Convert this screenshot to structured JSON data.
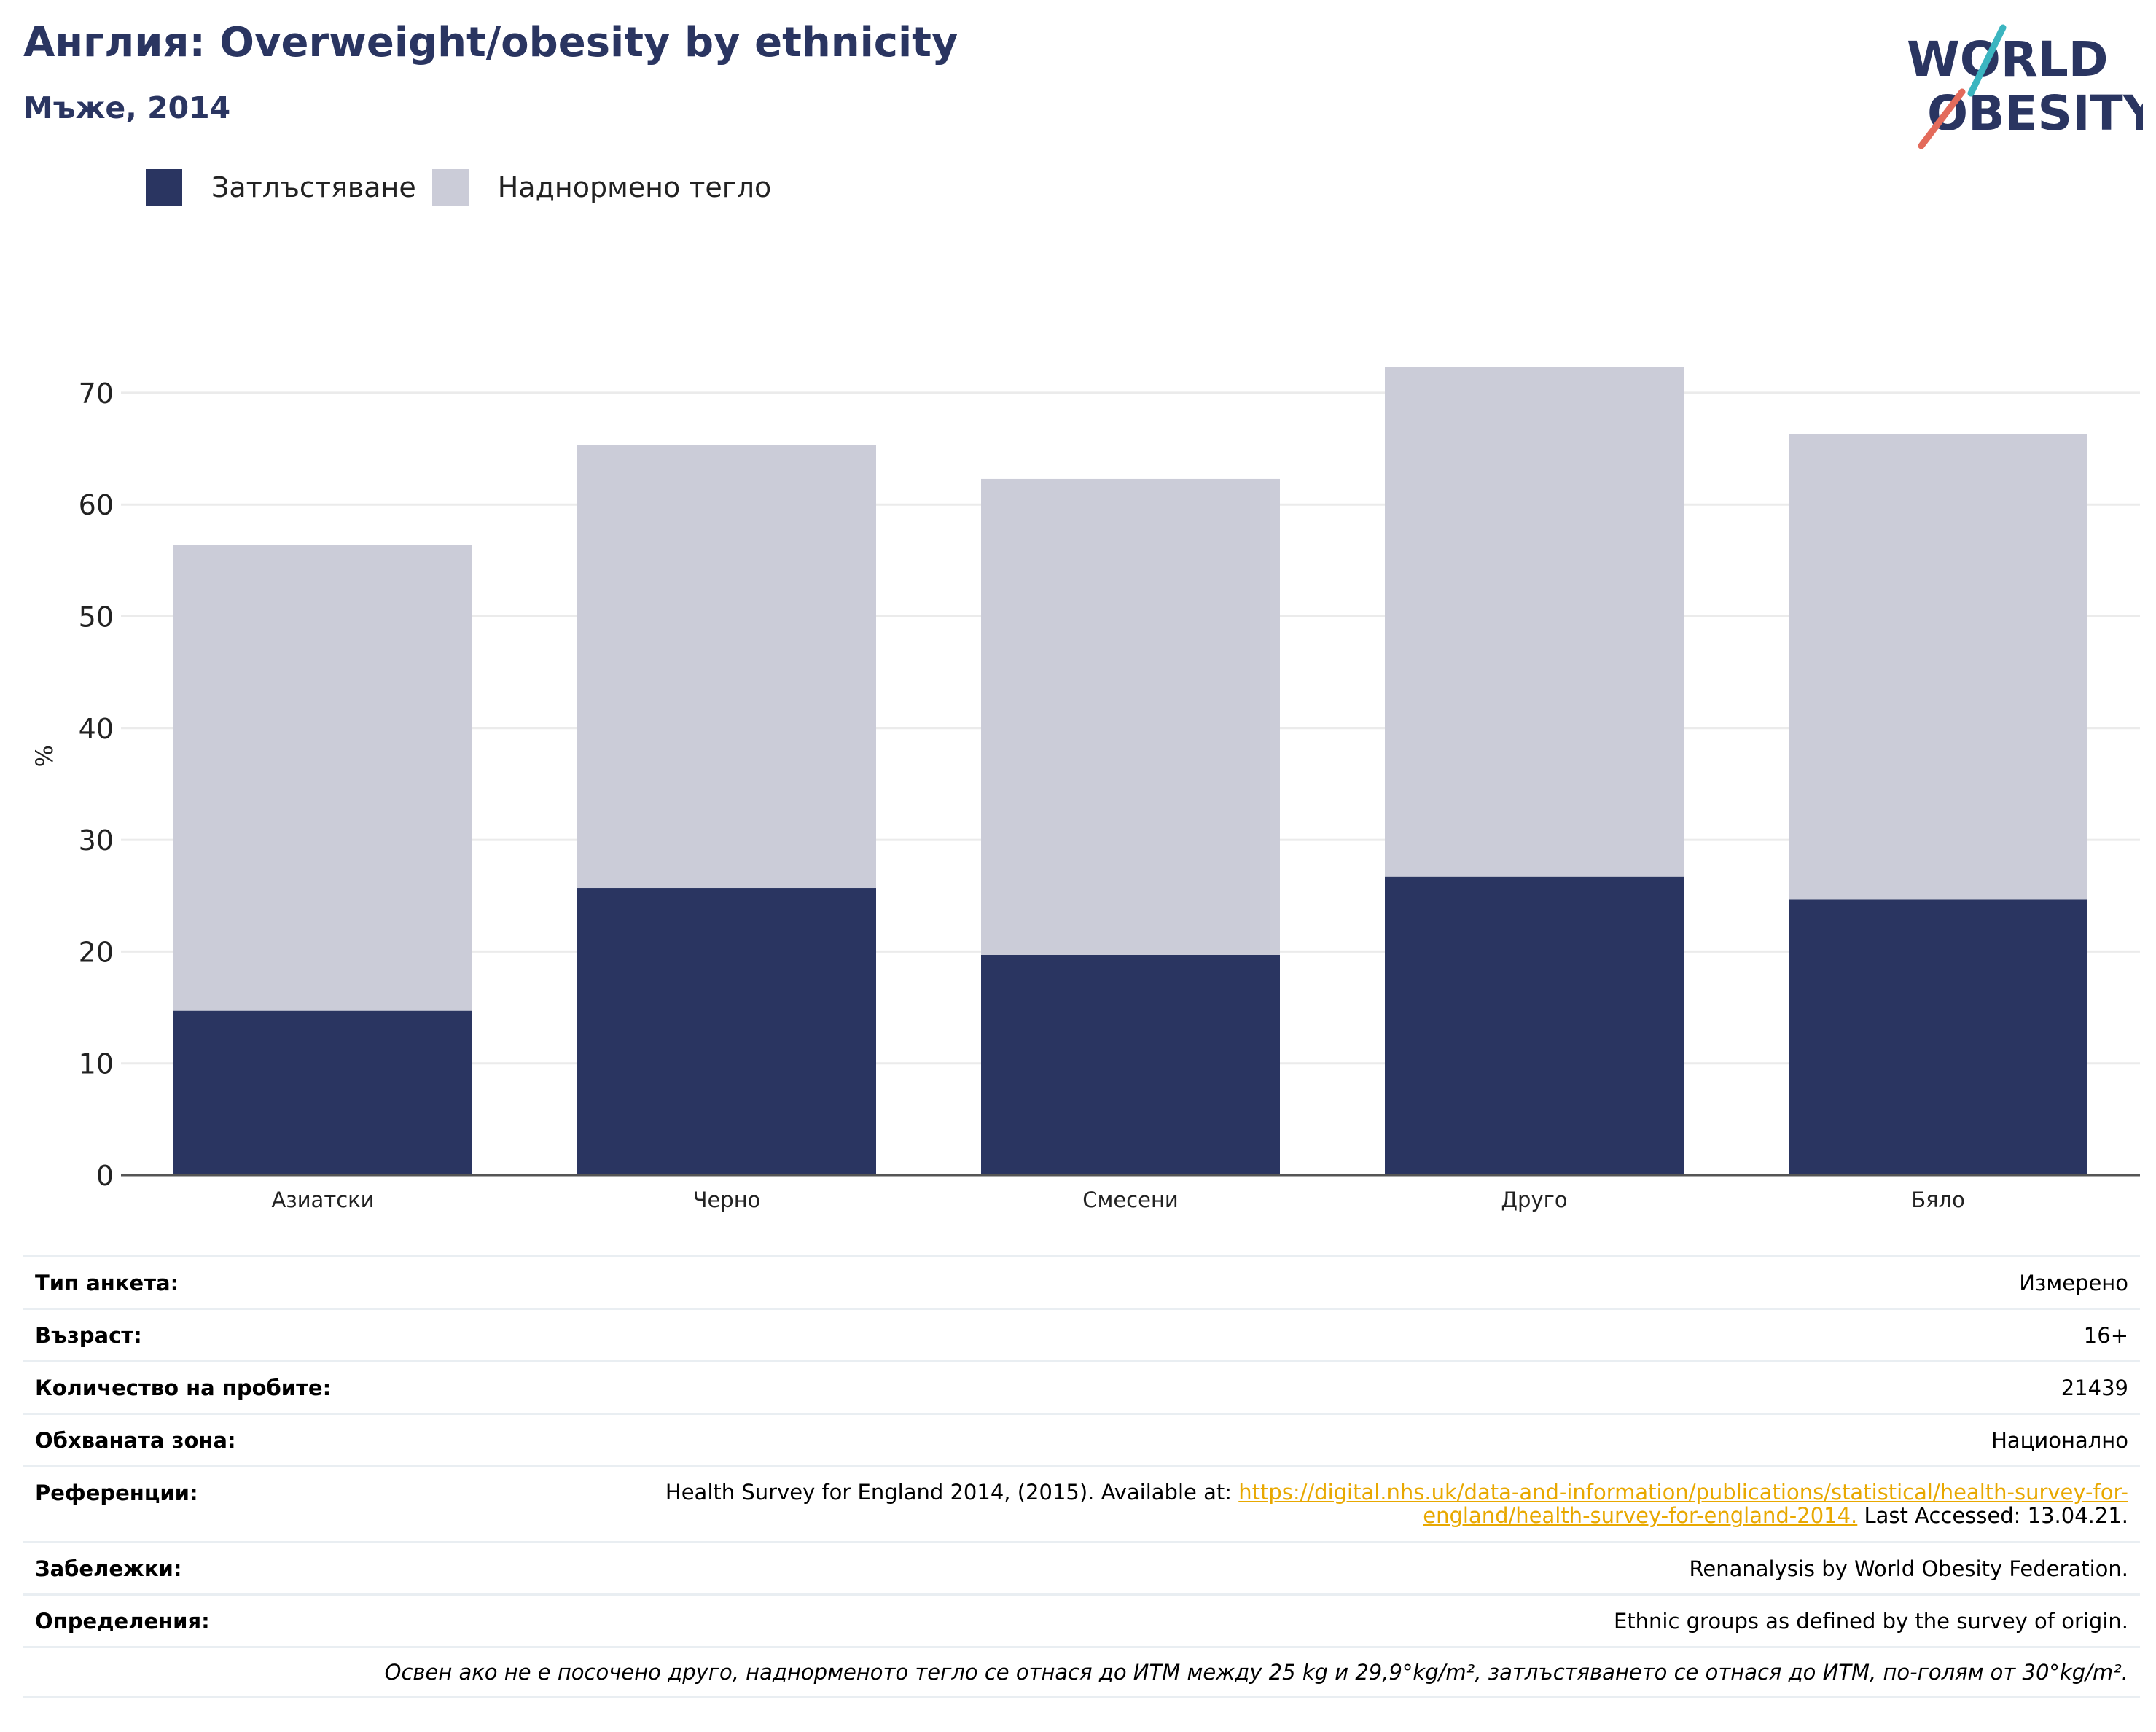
{
  "header": {
    "title": "Англия: Overweight/obesity by ethnicity",
    "subtitle": "Мъже, 2014"
  },
  "logo": {
    "line1": "WORLD",
    "line2": "OBESITY"
  },
  "colors": {
    "obesity": "#2a3561",
    "overweight": "#cbccd8",
    "accent_teal": "#3bb5c0",
    "accent_red": "#e36b5b",
    "link": "#e8a800"
  },
  "chart_data": {
    "type": "bar",
    "stacked": true,
    "categories": [
      "Азиатски",
      "Черно",
      "Смесени",
      "Друго",
      "Бяло"
    ],
    "series": [
      {
        "name": "Затлъстяване",
        "values": [
          14.7,
          25.7,
          19.7,
          26.7,
          24.7
        ]
      },
      {
        "name": "Наднормено тегло",
        "values": [
          41.7,
          39.6,
          42.6,
          45.6,
          41.6
        ]
      }
    ],
    "ylabel": "%",
    "ylim": [
      0,
      75
    ],
    "yticks": [
      0,
      10,
      20,
      30,
      40,
      50,
      60,
      70
    ],
    "grid": true,
    "legend": "top-left"
  },
  "info": {
    "rows": [
      {
        "label": "Тип анкета:",
        "value": "Измерено"
      },
      {
        "label": "Възраст:",
        "value": "16+"
      },
      {
        "label": "Количество на пробите:",
        "value": "21439"
      }
    ],
    "area": {
      "label": "Обхваната зона:",
      "value": "Национално"
    },
    "references": {
      "label": "Референции:",
      "text_before": "Health Survey for England 2014, (2015). Available at:",
      "link_line1": "https://digital.nhs.uk/data-and-information/publications/statistical/health-survey-for-",
      "link_line2": "england/health-survey-for-england-2014.",
      "text_after": "Last Accessed: 13.04.21."
    },
    "notes": {
      "label": "Забележки:",
      "value": "Renanalysis by World Obesity Federation."
    },
    "definitions": {
      "label": "Определения:",
      "value": "Ethnic groups as defined by the survey of origin."
    },
    "footnote": "Освен ако не е посочено друго, наднорменото тегло се отнася до ИТМ между 25 kg и 29,9°kg/m², затлъстяването се отнася до ИТМ, по-голям от 30°kg/m²."
  }
}
